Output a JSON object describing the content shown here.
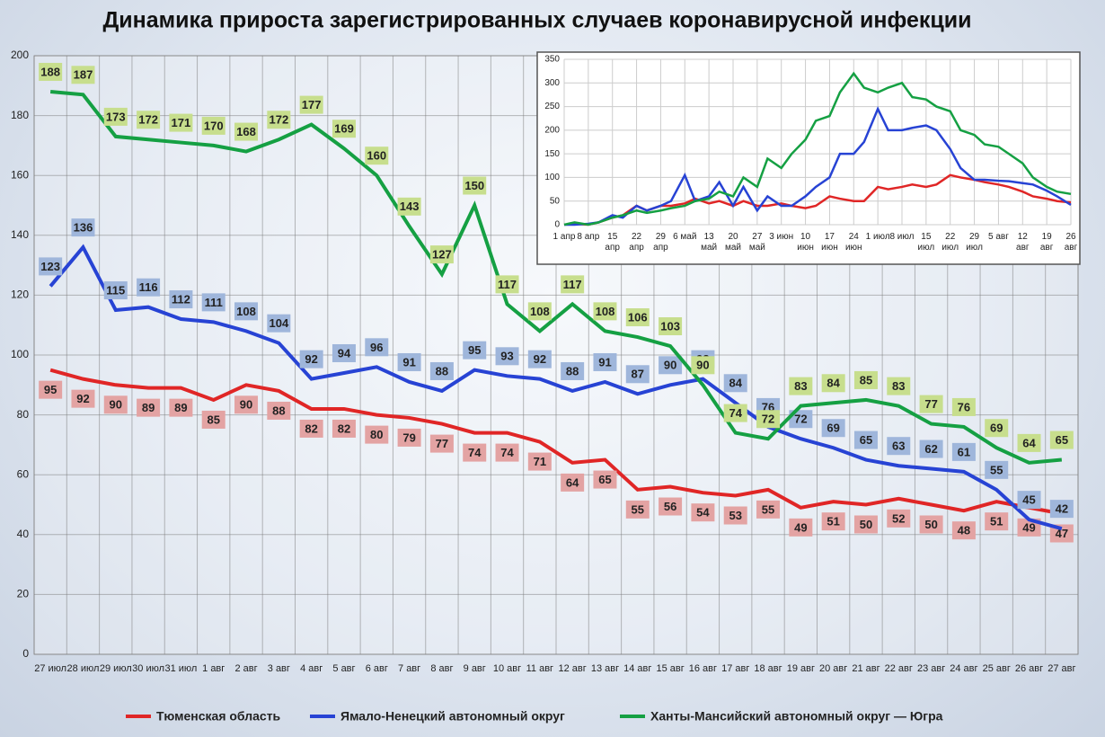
{
  "chart_data": [
    {
      "type": "line",
      "title": "Динамика прироста зарегистрированных случаев коронавирусной инфекции",
      "categories": [
        "27 июл",
        "28 июл",
        "29 июл",
        "30 июл",
        "31 июл",
        "1 авг",
        "2 авг",
        "3 авг",
        "4 авг",
        "5 авг",
        "6 авг",
        "7 авг",
        "8 авг",
        "9 авг",
        "10 авг",
        "11 авг",
        "12 авг",
        "13 авг",
        "14 авг",
        "15 авг",
        "16 авг",
        "17 авг",
        "18 авг",
        "19 авг",
        "20 авг",
        "21 авг",
        "22 авг",
        "23 авг",
        "24 авг",
        "25 авг",
        "26 авг",
        "27 авг"
      ],
      "series": [
        {
          "name": "Тюменская область",
          "color": "#e02626",
          "label_bg": "#e3a3a3",
          "values": [
            95,
            92,
            90,
            89,
            89,
            85,
            90,
            88,
            82,
            82,
            80,
            79,
            77,
            74,
            74,
            71,
            64,
            65,
            55,
            56,
            54,
            53,
            55,
            49,
            51,
            50,
            52,
            50,
            48,
            51,
            49,
            47
          ]
        },
        {
          "name": "Ямало-Ненецкий автономный округ",
          "color": "#2743d4",
          "label_bg": "#9fb6db",
          "values": [
            123,
            136,
            115,
            116,
            112,
            111,
            108,
            104,
            92,
            94,
            96,
            91,
            88,
            95,
            93,
            92,
            88,
            91,
            87,
            90,
            92,
            84,
            76,
            72,
            69,
            65,
            63,
            62,
            61,
            55,
            45,
            42
          ]
        },
        {
          "name": "Ханты-Мансийский автономный округ — Югра",
          "color": "#15a043",
          "label_bg": "#c7de8d",
          "values": [
            188,
            187,
            173,
            172,
            171,
            170,
            168,
            172,
            177,
            169,
            160,
            143,
            127,
            150,
            117,
            108,
            117,
            108,
            106,
            103,
            90,
            74,
            72,
            83,
            84,
            85,
            83,
            77,
            76,
            69,
            64,
            65
          ]
        }
      ],
      "ylim": [
        0,
        200
      ],
      "yticks": [
        0,
        20,
        40,
        60,
        80,
        100,
        120,
        140,
        160,
        180,
        200
      ],
      "grid": true,
      "legend": "bottom"
    },
    {
      "type": "line",
      "x": [
        0,
        3,
        7,
        10,
        14,
        17,
        21,
        24,
        28,
        31,
        35,
        38,
        42,
        45,
        49,
        52,
        56,
        59,
        63,
        66,
        70,
        73,
        77,
        80,
        84,
        87,
        91,
        94,
        98,
        101,
        105,
        108,
        112,
        115,
        119,
        122,
        126,
        129,
        133,
        136,
        140,
        143,
        147
      ],
      "series": [
        {
          "color": "#e02626",
          "values": [
            0,
            2,
            0,
            5,
            15,
            20,
            40,
            30,
            40,
            40,
            45,
            55,
            45,
            50,
            40,
            50,
            40,
            40,
            45,
            40,
            35,
            40,
            60,
            55,
            50,
            50,
            80,
            75,
            80,
            85,
            80,
            85,
            105,
            100,
            95,
            90,
            85,
            80,
            70,
            60,
            55,
            50,
            47
          ]
        },
        {
          "color": "#2743d4",
          "values": [
            0,
            0,
            2,
            5,
            20,
            15,
            40,
            30,
            40,
            50,
            105,
            50,
            60,
            90,
            40,
            80,
            30,
            60,
            40,
            40,
            60,
            80,
            100,
            150,
            150,
            175,
            245,
            200,
            200,
            205,
            210,
            200,
            160,
            120,
            95,
            95,
            93,
            92,
            88,
            85,
            72,
            60,
            42
          ]
        },
        {
          "color": "#15a043",
          "values": [
            0,
            5,
            0,
            5,
            15,
            20,
            30,
            25,
            30,
            35,
            40,
            50,
            55,
            70,
            60,
            100,
            80,
            140,
            120,
            150,
            180,
            220,
            230,
            280,
            320,
            290,
            280,
            290,
            300,
            270,
            265,
            250,
            240,
            200,
            190,
            170,
            165,
            150,
            130,
            100,
            80,
            70,
            65
          ]
        }
      ],
      "xlim": [
        0,
        147
      ],
      "xticks": [
        {
          "value": 0,
          "label": "1 апр"
        },
        {
          "value": 7,
          "label": "8 апр"
        },
        {
          "value": 14,
          "label": "15 апр"
        },
        {
          "value": 21,
          "label": "22 апр"
        },
        {
          "value": 28,
          "label": "29 апр"
        },
        {
          "value": 35,
          "label": "6 май"
        },
        {
          "value": 42,
          "label": "13 май"
        },
        {
          "value": 49,
          "label": "20 май"
        },
        {
          "value": 56,
          "label": "27 май"
        },
        {
          "value": 63,
          "label": "3 июн"
        },
        {
          "value": 70,
          "label": "10 июн"
        },
        {
          "value": 77,
          "label": "17 июн"
        },
        {
          "value": 84,
          "label": "24 июн"
        },
        {
          "value": 91,
          "label": "1 июл"
        },
        {
          "value": 98,
          "label": "8 июл"
        },
        {
          "value": 105,
          "label": "15 июл"
        },
        {
          "value": 112,
          "label": "22 июл"
        },
        {
          "value": 119,
          "label": "29 июл"
        },
        {
          "value": 126,
          "label": "5 авг"
        },
        {
          "value": 133,
          "label": "12 авг"
        },
        {
          "value": 140,
          "label": "19 авг"
        },
        {
          "value": 147,
          "label": "26 авг"
        }
      ],
      "ylim": [
        0,
        350
      ],
      "yticks": [
        0,
        50,
        100,
        150,
        200,
        250,
        300,
        350
      ],
      "grid": true
    }
  ]
}
